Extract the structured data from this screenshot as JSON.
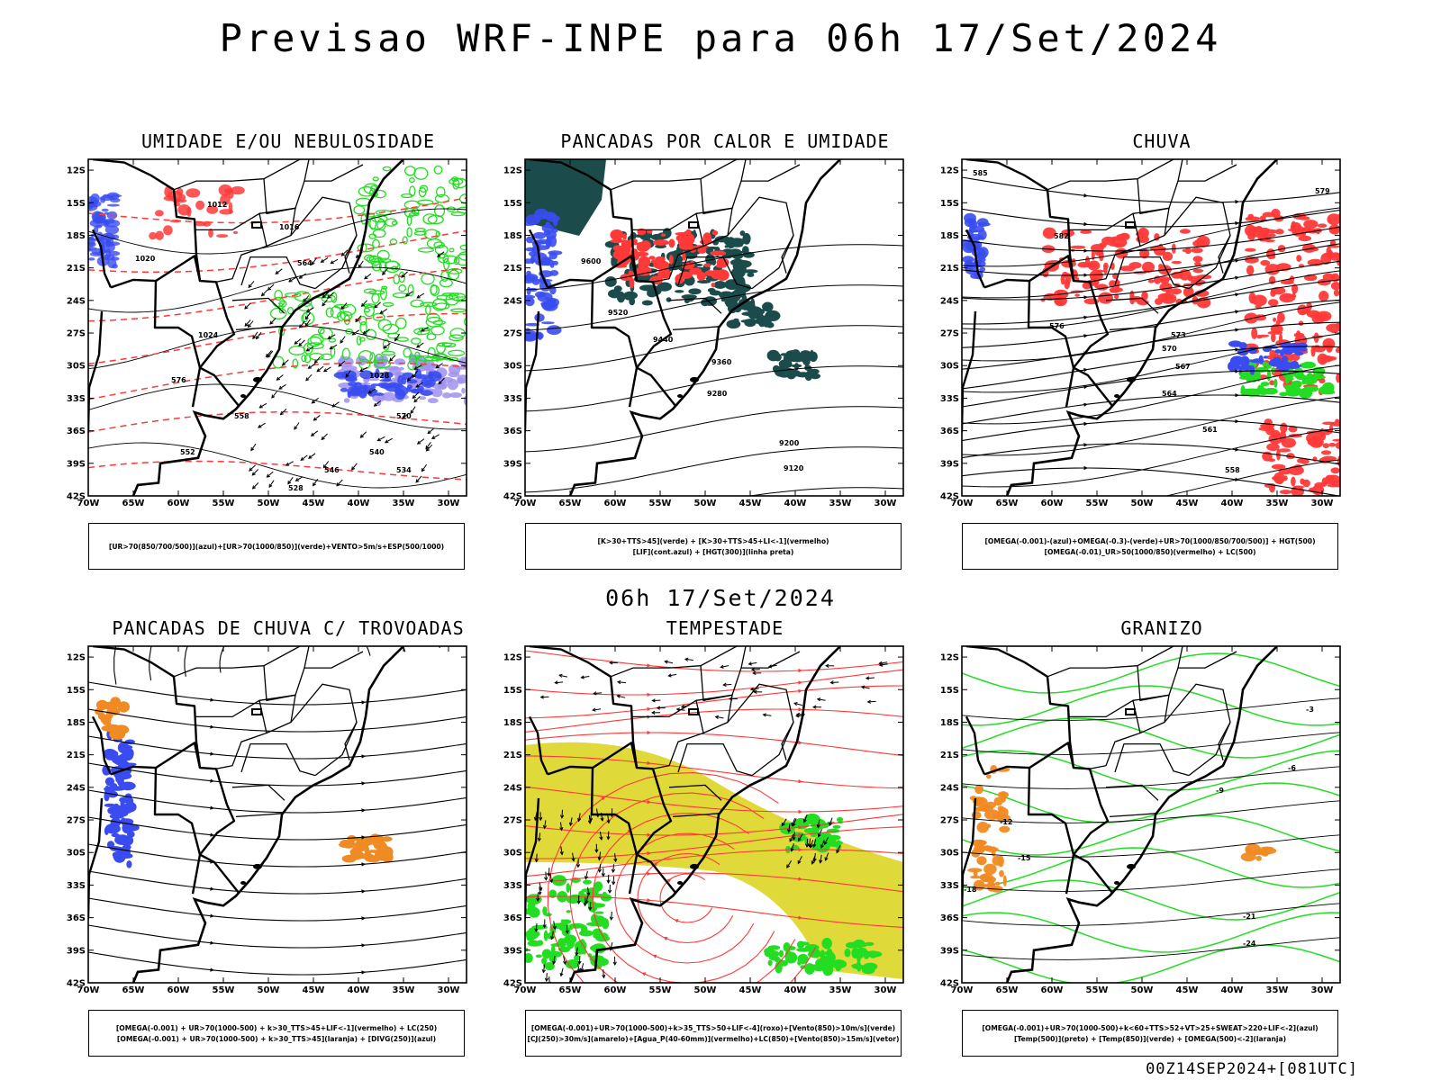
{
  "title": "Previsao WRF-INPE  para 06h 17/Set/2024",
  "mid_date": "06h 17/Set/2024",
  "run_id": "00Z14SEP2024+[081UTC]",
  "lat_labels": [
    "12S",
    "15S",
    "18S",
    "21S",
    "24S",
    "27S",
    "30S",
    "33S",
    "36S",
    "39S",
    "42S"
  ],
  "lon_labels": [
    "70W",
    "65W",
    "60W",
    "55W",
    "50W",
    "45W",
    "40W",
    "35W",
    "30W"
  ],
  "colors": {
    "blue": "#3a4cf0",
    "green": "#22dd22",
    "red": "#ff3838",
    "dark": "#1c4b4b",
    "yellow": "#e0d93a",
    "orange": "#f08a22",
    "purple": "#a090f0"
  },
  "panels": [
    {
      "title": "UMIDADE E/OU NEBULOSIDADE",
      "legend": [
        "[UR>70(850/700/500)](azul)+[UR>70(1000/850)](verde)+VENTO>5m/s+ESP(500/1000)"
      ],
      "contour_labels": [
        "1012",
        "1016",
        "1020",
        "1024",
        "1028",
        "570",
        "576",
        "564",
        "558",
        "552",
        "546",
        "540",
        "534",
        "528"
      ]
    },
    {
      "title": "PANCADAS POR CALOR E UMIDADE",
      "legend": [
        "[K>30+TTS>45](verde) + [K>30+TTS>45+LI<-1](vermelho)",
        "[LIF](cont.azul) + [HGT(300)](linha preta)"
      ],
      "contour_labels": [
        "9600",
        "9520",
        "9440",
        "9360",
        "9280",
        "9200",
        "9120"
      ]
    },
    {
      "title": "CHUVA",
      "legend": [
        "[OMEGA(-0.001)-(azul)+OMEGA(-0.3)-(verde)+UR>70(1000/850/700/500)] + HGT(500)",
        "[OMEGA(-0.01)_UR>50(1000/850)(vermelho) + LC(500)"
      ],
      "contour_labels": [
        "585",
        "582",
        "579",
        "576",
        "573",
        "570",
        "567",
        "564",
        "561",
        "558"
      ]
    },
    {
      "title": "PANCADAS DE CHUVA C/ TROVOADAS",
      "legend": [
        "[OMEGA(-0.001) + UR>70(1000-500) + k>30_TTS>45+LIF<-1](vermelho) + LC(250)",
        "[OMEGA(-0.001) + UR>70(1000-500) + k>30_TTS>45](laranja) + [DIVG(250)](azul)"
      ],
      "contour_labels": []
    },
    {
      "title": "TEMPESTADE",
      "legend": [
        "[OMEGA(-0.001)+UR>70(1000-500)+k>35_TTS>50+LIF<-4](roxo)+[Vento(850)>10m/s](verde)",
        "[CJ(250)>30m/s](amarelo)+[Agua_P(40-60mm)](vermelho)+LC(850)+[Vento(850)>15m/s](vetor)"
      ],
      "contour_labels": []
    },
    {
      "title": "GRANIZO",
      "legend": [
        "[OMEGA(-0.001)+UR>70(1000-500)+k<60+TTS>52+VT>25+SWEAT>220+LIF<-2](azul)",
        "[Temp(500)](preto) + [Temp(850)](verde) + [OMEGA(500)<-2](laranja)"
      ],
      "contour_labels": [
        "-3",
        "-6",
        "-9",
        "-12",
        "-15",
        "-18",
        "-21",
        "-24"
      ]
    }
  ]
}
